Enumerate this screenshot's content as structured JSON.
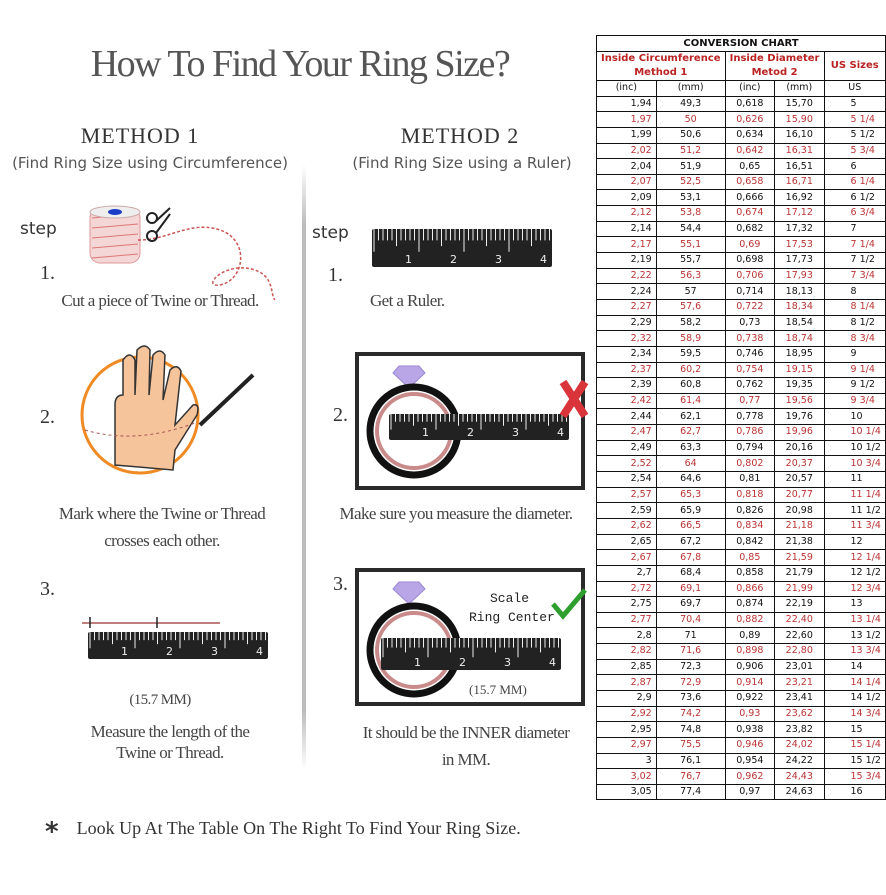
{
  "title": "How To Find Your Ring Size?",
  "method1": {
    "heading": "METHOD 1",
    "subtitle": "(Find Ring Size using Circumference)",
    "step_label": "step",
    "steps": [
      {
        "number": "1.",
        "caption_lines": [
          "Cut a piece of  Twine or Thread."
        ]
      },
      {
        "number": "2.",
        "caption_lines": [
          "Mark where the Twine or Thread",
          "crosses each other."
        ]
      },
      {
        "number": "3.",
        "measurement": "(15.7 MM)",
        "caption_lines": [
          "Measure the length of the",
          "Twine or Thread."
        ]
      }
    ]
  },
  "method2": {
    "heading": "METHOD 2",
    "subtitle": "(Find Ring Size using a Ruler)",
    "step_label": "step",
    "steps": [
      {
        "number": "1.",
        "caption_lines": [
          "Get a Ruler."
        ]
      },
      {
        "number": "2.",
        "caption_lines": [
          "Make sure you measure the diameter."
        ]
      },
      {
        "number": "3.",
        "scale_label": "Scale",
        "ring_center_label": "Ring Center",
        "measurement": "(15.7 MM)",
        "caption_lines": [
          "It should be the INNER diameter",
          "in MM."
        ]
      }
    ]
  },
  "ruler_numbers": [
    "1",
    "2",
    "3",
    "4"
  ],
  "footer": {
    "marker": "*",
    "text": "Look Up At The Table On The Right To Find Your Ring Size."
  },
  "colors": {
    "red_rows": "#b33333",
    "ring_orange": "#f08a24",
    "check_green": "#2e9e2e",
    "cross_red": "#d9343a",
    "diamond_purple": "#b9a6e6"
  },
  "conversion_chart": {
    "title": "CONVERSION CHART",
    "group_headers": [
      "Inside Circumference Method 1",
      "Inside Diameter Metod 2",
      "US Sizes"
    ],
    "group_header_lines": [
      [
        "Inside Circumference",
        "Method 1"
      ],
      [
        "Inside Diameter",
        "Metod 2"
      ],
      [
        "US Sizes"
      ]
    ],
    "unit_headers": [
      "(inc)",
      "(mm)",
      "(inc)",
      "(mm)",
      "US"
    ],
    "rows": [
      [
        "1,94",
        "49,3",
        "0,618",
        "15,70",
        "5"
      ],
      [
        "1,97",
        "50",
        "0,626",
        "15,90",
        "5 1/4"
      ],
      [
        "1,99",
        "50,6",
        "0,634",
        "16,10",
        "5 1/2"
      ],
      [
        "2,02",
        "51,2",
        "0,642",
        "16,31",
        "5 3/4"
      ],
      [
        "2,04",
        "51,9",
        "0,65",
        "16,51",
        "6"
      ],
      [
        "2,07",
        "52,5",
        "0,658",
        "16,71",
        "6 1/4"
      ],
      [
        "2,09",
        "53,1",
        "0,666",
        "16,92",
        "6 1/2"
      ],
      [
        "2,12",
        "53,8",
        "0,674",
        "17,12",
        "6 3/4"
      ],
      [
        "2,14",
        "54,4",
        "0,682",
        "17,32",
        "7"
      ],
      [
        "2,17",
        "55,1",
        "0,69",
        "17,53",
        "7 1/4"
      ],
      [
        "2,19",
        "55,7",
        "0,698",
        "17,73",
        "7 1/2"
      ],
      [
        "2,22",
        "56,3",
        "0,706",
        "17,93",
        "7 3/4"
      ],
      [
        "2,24",
        "57",
        "0,714",
        "18,13",
        "8"
      ],
      [
        "2,27",
        "57,6",
        "0,722",
        "18,34",
        "8 1/4"
      ],
      [
        "2,29",
        "58,2",
        "0,73",
        "18,54",
        "8 1/2"
      ],
      [
        "2,32",
        "58,9",
        "0,738",
        "18,74",
        "8 3/4"
      ],
      [
        "2,34",
        "59,5",
        "0,746",
        "18,95",
        "9"
      ],
      [
        "2,37",
        "60,2",
        "0,754",
        "19,15",
        "9 1/4"
      ],
      [
        "2,39",
        "60,8",
        "0,762",
        "19,35",
        "9 1/2"
      ],
      [
        "2,42",
        "61,4",
        "0,77",
        "19,56",
        "9 3/4"
      ],
      [
        "2,44",
        "62,1",
        "0,778",
        "19,76",
        "10"
      ],
      [
        "2,47",
        "62,7",
        "0,786",
        "19,96",
        "10 1/4"
      ],
      [
        "2,49",
        "63,3",
        "0,794",
        "20,16",
        "10 1/2"
      ],
      [
        "2,52",
        "64",
        "0,802",
        "20,37",
        "10 3/4"
      ],
      [
        "2,54",
        "64,6",
        "0,81",
        "20,57",
        "11"
      ],
      [
        "2,57",
        "65,3",
        "0,818",
        "20,77",
        "11 1/4"
      ],
      [
        "2,59",
        "65,9",
        "0,826",
        "20,98",
        "11 1/2"
      ],
      [
        "2,62",
        "66,5",
        "0,834",
        "21,18",
        "11 3/4"
      ],
      [
        "2,65",
        "67,2",
        "0,842",
        "21,38",
        "12"
      ],
      [
        "2,67",
        "67,8",
        "0,85",
        "21,59",
        "12 1/4"
      ],
      [
        "2,7",
        "68,4",
        "0,858",
        "21,79",
        "12 1/2"
      ],
      [
        "2,72",
        "69,1",
        "0,866",
        "21,99",
        "12 3/4"
      ],
      [
        "2,75",
        "69,7",
        "0,874",
        "22,19",
        "13"
      ],
      [
        "2,77",
        "70,4",
        "0,882",
        "22,40",
        "13 1/4"
      ],
      [
        "2,8",
        "71",
        "0,89",
        "22,60",
        "13 1/2"
      ],
      [
        "2,82",
        "71,6",
        "0,898",
        "22,80",
        "13 3/4"
      ],
      [
        "2,85",
        "72,3",
        "0,906",
        "23,01",
        "14"
      ],
      [
        "2,87",
        "72,9",
        "0,914",
        "23,21",
        "14 1/4"
      ],
      [
        "2,9",
        "73,6",
        "0,922",
        "23,41",
        "14 1/2"
      ],
      [
        "2,92",
        "74,2",
        "0,93",
        "23,62",
        "14 3/4"
      ],
      [
        "2,95",
        "74,8",
        "0,938",
        "23,82",
        "15"
      ],
      [
        "2,97",
        "75,5",
        "0,946",
        "24,02",
        "15 1/4"
      ],
      [
        "3",
        "76,1",
        "0,954",
        "24,22",
        "15 1/2"
      ],
      [
        "3,02",
        "76,7",
        "0,962",
        "24,43",
        "15 3/4"
      ],
      [
        "3,05",
        "77,4",
        "0,97",
        "24,63",
        "16"
      ]
    ]
  }
}
